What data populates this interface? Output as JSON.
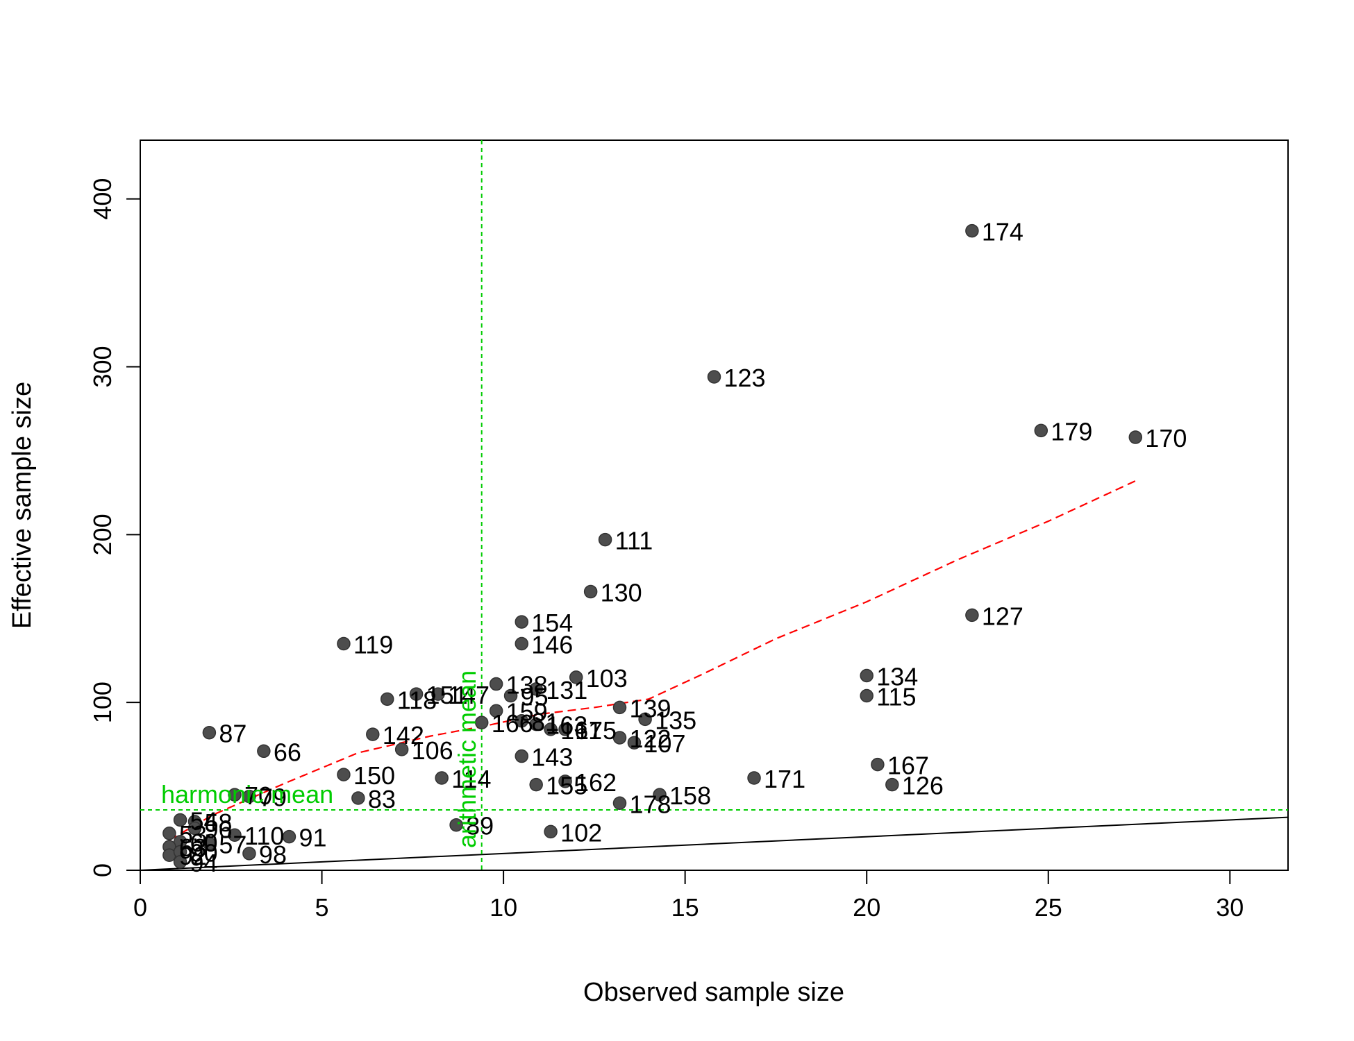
{
  "chart_data": {
    "type": "scatter",
    "title": "",
    "xlabel": "Observed sample size",
    "ylabel": "Effective sample size",
    "xlim": [
      0,
      31.6
    ],
    "ylim": [
      0,
      435
    ],
    "x_ticks": [
      0,
      5,
      10,
      15,
      20,
      25,
      30
    ],
    "y_ticks": [
      0,
      100,
      200,
      300,
      400
    ],
    "grid": false,
    "legend": "none",
    "colors": {
      "points": "#4d4d4d",
      "smooth": "#ff0000",
      "means": "#00cc00",
      "identity": "#000000"
    },
    "points": [
      {
        "label": "174",
        "x": 22.9,
        "y": 381
      },
      {
        "label": "123",
        "x": 15.8,
        "y": 294
      },
      {
        "label": "179",
        "x": 24.8,
        "y": 262
      },
      {
        "label": "170",
        "x": 27.4,
        "y": 258
      },
      {
        "label": "111",
        "x": 12.8,
        "y": 197
      },
      {
        "label": "130",
        "x": 12.4,
        "y": 166
      },
      {
        "label": "127",
        "x": 22.9,
        "y": 152
      },
      {
        "label": "154",
        "x": 10.5,
        "y": 148
      },
      {
        "label": "146",
        "x": 10.5,
        "y": 135
      },
      {
        "label": "119",
        "x": 5.6,
        "y": 135
      },
      {
        "label": "134",
        "x": 20.0,
        "y": 116
      },
      {
        "label": "103",
        "x": 12.0,
        "y": 115
      },
      {
        "label": "138",
        "x": 9.8,
        "y": 111
      },
      {
        "label": "131",
        "x": 10.9,
        "y": 108
      },
      {
        "label": "151",
        "x": 7.6,
        "y": 105
      },
      {
        "label": "147",
        "x": 8.2,
        "y": 105
      },
      {
        "label": "115",
        "x": 20.0,
        "y": 104
      },
      {
        "label": "95",
        "x": 10.2,
        "y": 104
      },
      {
        "label": "118",
        "x": 6.8,
        "y": 102
      },
      {
        "label": "139",
        "x": 13.2,
        "y": 97
      },
      {
        "label": "159",
        "x": 9.8,
        "y": 95
      },
      {
        "label": "135",
        "x": 13.9,
        "y": 90
      },
      {
        "label": "166",
        "x": 9.4,
        "y": 88
      },
      {
        "label": "81",
        "x": 10.5,
        "y": 89
      },
      {
        "label": "163",
        "x": 10.9,
        "y": 87
      },
      {
        "label": "161",
        "x": 11.3,
        "y": 84
      },
      {
        "label": "175",
        "x": 11.7,
        "y": 84
      },
      {
        "label": "87",
        "x": 1.9,
        "y": 82
      },
      {
        "label": "142",
        "x": 6.4,
        "y": 81
      },
      {
        "label": "122",
        "x": 13.2,
        "y": 79
      },
      {
        "label": "107",
        "x": 13.6,
        "y": 76
      },
      {
        "label": "106",
        "x": 7.2,
        "y": 72
      },
      {
        "label": "66",
        "x": 3.4,
        "y": 71
      },
      {
        "label": "143",
        "x": 10.5,
        "y": 68
      },
      {
        "label": "167",
        "x": 20.3,
        "y": 63
      },
      {
        "label": "150",
        "x": 5.6,
        "y": 57
      },
      {
        "label": "171",
        "x": 16.9,
        "y": 55
      },
      {
        "label": "114",
        "x": 8.3,
        "y": 55
      },
      {
        "label": "162",
        "x": 11.7,
        "y": 53
      },
      {
        "label": "155",
        "x": 10.9,
        "y": 51
      },
      {
        "label": "126",
        "x": 20.7,
        "y": 51
      },
      {
        "label": "70",
        "x": 2.6,
        "y": 45
      },
      {
        "label": "79",
        "x": 3.0,
        "y": 44
      },
      {
        "label": "158",
        "x": 14.3,
        "y": 45
      },
      {
        "label": "83",
        "x": 6.0,
        "y": 43
      },
      {
        "label": "178",
        "x": 13.2,
        "y": 40
      },
      {
        "label": "54",
        "x": 1.1,
        "y": 30
      },
      {
        "label": "58",
        "x": 1.5,
        "y": 29
      },
      {
        "label": "89",
        "x": 8.7,
        "y": 27
      },
      {
        "label": "96",
        "x": 1.5,
        "y": 25
      },
      {
        "label": "102",
        "x": 11.3,
        "y": 23
      },
      {
        "label": "53",
        "x": 0.8,
        "y": 22
      },
      {
        "label": "110",
        "x": 2.6,
        "y": 21
      },
      {
        "label": "91",
        "x": 4.1,
        "y": 20
      },
      {
        "label": "60",
        "x": 1.1,
        "y": 17
      },
      {
        "label": "57",
        "x": 1.9,
        "y": 16
      },
      {
        "label": "63",
        "x": 0.8,
        "y": 14
      },
      {
        "label": "98",
        "x": 3.0,
        "y": 10
      },
      {
        "label": "92",
        "x": 0.8,
        "y": 9
      },
      {
        "label": "90",
        "x": 1.1,
        "y": 11
      },
      {
        "label": "94",
        "x": 1.1,
        "y": 5
      }
    ],
    "lines": {
      "identity": {
        "x": [
          0,
          31.6
        ],
        "y": [
          0,
          31.6
        ]
      },
      "harmonic_mean": {
        "label": "harmonic mean",
        "y": 36
      },
      "arithmetic_mean": {
        "label": "arithmetic mean",
        "x": 9.4
      },
      "smooth": {
        "x": [
          0.8,
          2,
          4,
          6,
          8,
          9.5,
          11,
          12.5,
          14,
          15.5,
          17.5,
          20,
          22.5,
          25,
          27.5
        ],
        "y": [
          18,
          33,
          52,
          70,
          80,
          86,
          93,
          97,
          102,
          117,
          138,
          160,
          185,
          208,
          233
        ]
      }
    }
  }
}
